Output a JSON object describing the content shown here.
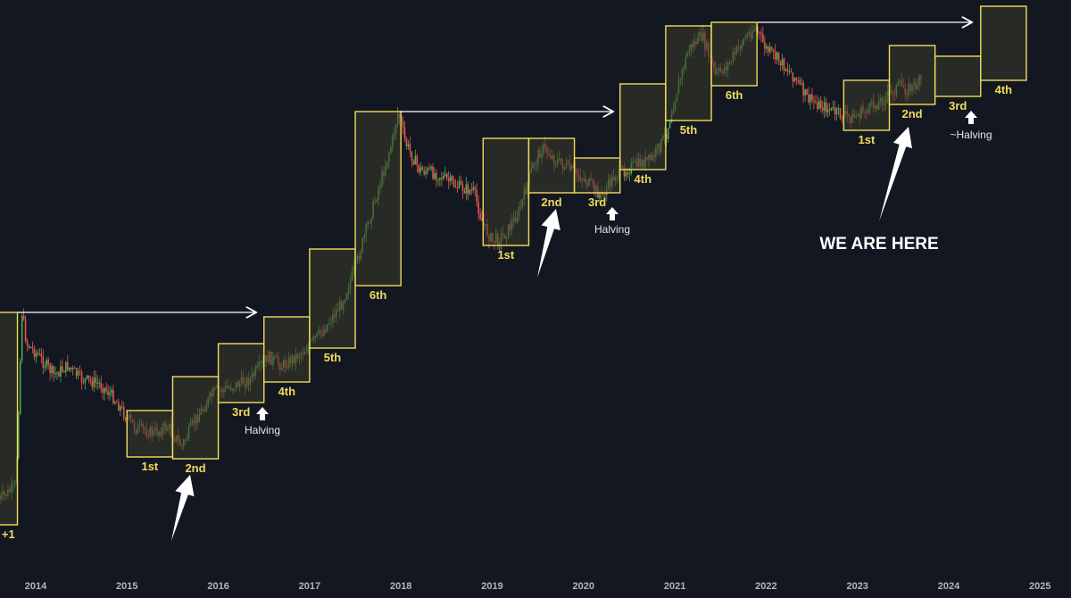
{
  "colors": {
    "background": "#131722",
    "box_stroke": "#f0dc5a",
    "box_fill": "#3a3a2a",
    "label": "#f0dc5a",
    "up_candle": "#4caf50",
    "down_candle": "#e0574f",
    "arrow": "#ffffff",
    "tick_text": "#b2b5be",
    "note_text": "#e8e8e8"
  },
  "chart_data": {
    "type": "candlestick",
    "title": "",
    "xlabel": "",
    "ylabel": "",
    "x_ticks": [
      "2014",
      "2015",
      "2016",
      "2017",
      "2018",
      "2019",
      "2020",
      "2021",
      "2022",
      "2023",
      "2024",
      "2025"
    ],
    "x_range": [
      2013.6,
      2025.0
    ],
    "y_axis": "log (unlabeled)",
    "cycles": [
      {
        "boxes": [
          {
            "label": "1st",
            "x0": 2015.0,
            "x1": 2015.5,
            "y_low": 512,
            "y_high": 460
          },
          {
            "label": "2nd",
            "x0": 2015.5,
            "x1": 2016.0,
            "y_low": 514,
            "y_high": 422
          },
          {
            "label": "3rd",
            "x0": 2016.0,
            "x1": 2016.5,
            "y_low": 451,
            "y_high": 385
          },
          {
            "label": "4th",
            "x0": 2016.5,
            "x1": 2017.0,
            "y_low": 428,
            "y_high": 355
          },
          {
            "label": "5th",
            "x0": 2017.0,
            "x1": 2017.5,
            "y_low": 390,
            "y_high": 279
          },
          {
            "label": "6th",
            "x0": 2017.5,
            "x1": 2018.0,
            "y_low": 320,
            "y_high": 125
          }
        ],
        "halving": {
          "label": "Halving",
          "x": 2016.5
        }
      },
      {
        "boxes": [
          {
            "label": "1st",
            "x0": 2018.9,
            "x1": 2019.4,
            "y_low": 275,
            "y_high": 155
          },
          {
            "label": "2nd",
            "x0": 2019.4,
            "x1": 2019.9,
            "y_low": 216,
            "y_high": 155
          },
          {
            "label": "3rd",
            "x0": 2019.9,
            "x1": 2020.4,
            "y_low": 216,
            "y_high": 177
          },
          {
            "label": "4th",
            "x0": 2020.4,
            "x1": 2020.9,
            "y_low": 190,
            "y_high": 94
          },
          {
            "label": "5th",
            "x0": 2020.9,
            "x1": 2021.4,
            "y_low": 135,
            "y_high": 29
          },
          {
            "label": "6th",
            "x0": 2021.4,
            "x1": 2021.9,
            "y_low": 96,
            "y_high": 25
          }
        ],
        "halving": {
          "label": "Halving",
          "x": 2020.3
        }
      },
      {
        "boxes": [
          {
            "label": "1st",
            "x0": 2022.85,
            "x1": 2023.35,
            "y_low": 146,
            "y_high": 90
          },
          {
            "label": "2nd",
            "x0": 2023.35,
            "x1": 2023.85,
            "y_low": 117,
            "y_high": 51
          },
          {
            "label": "3rd",
            "x0": 2023.85,
            "x1": 2024.35,
            "y_low": 108,
            "y_high": 63
          },
          {
            "label": "4th",
            "x0": 2024.35,
            "x1": 2024.85,
            "y_low": 90,
            "y_high": 7
          }
        ],
        "halving": {
          "label": "~Halving",
          "x": 2024.25
        }
      }
    ],
    "partial_box": {
      "label": "+1",
      "x0": 2013.6,
      "x1": 2013.8,
      "y_low": 588,
      "y_high": 350
    },
    "callout": {
      "label": "WE ARE HERE"
    }
  }
}
